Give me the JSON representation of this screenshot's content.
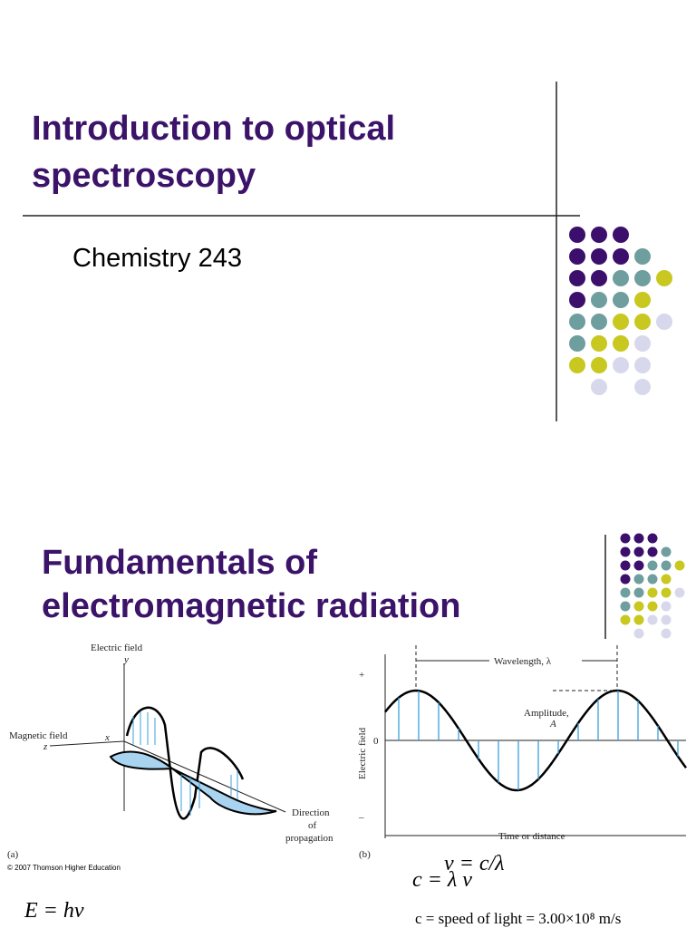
{
  "slide1": {
    "title_line1": "Introduction to optical",
    "title_line2": "spectroscopy",
    "subtitle": "Chemistry 243"
  },
  "slide2": {
    "title_line1": "Fundamentals of",
    "title_line2": "electromagnetic radiation",
    "figure_a": {
      "y_axis": "Electric field",
      "y_letter": "y",
      "x_axis": "Magnetic field",
      "x_letter": "x",
      "z_letter": "z",
      "direction_line1": "Direction",
      "direction_line2": "of",
      "direction_line3": "propagation",
      "panel": "(a)",
      "copyright": "© 2007 Thomson Higher Education"
    },
    "figure_b": {
      "wavelength": "Wavelength, λ",
      "amplitude": "Amplitude,",
      "amplitude_symbol": "A",
      "y_axis": "Electric field",
      "plus": "+",
      "zero": "0",
      "minus": "–",
      "x_axis": "Time or distance",
      "panel": "(b)"
    },
    "equations": {
      "energy": "E = hν",
      "frequency": "ν = c/λ",
      "speed": "c = λ ν",
      "speed_of_light": "c = speed of light = 3.00×10⁸ m/s"
    }
  }
}
